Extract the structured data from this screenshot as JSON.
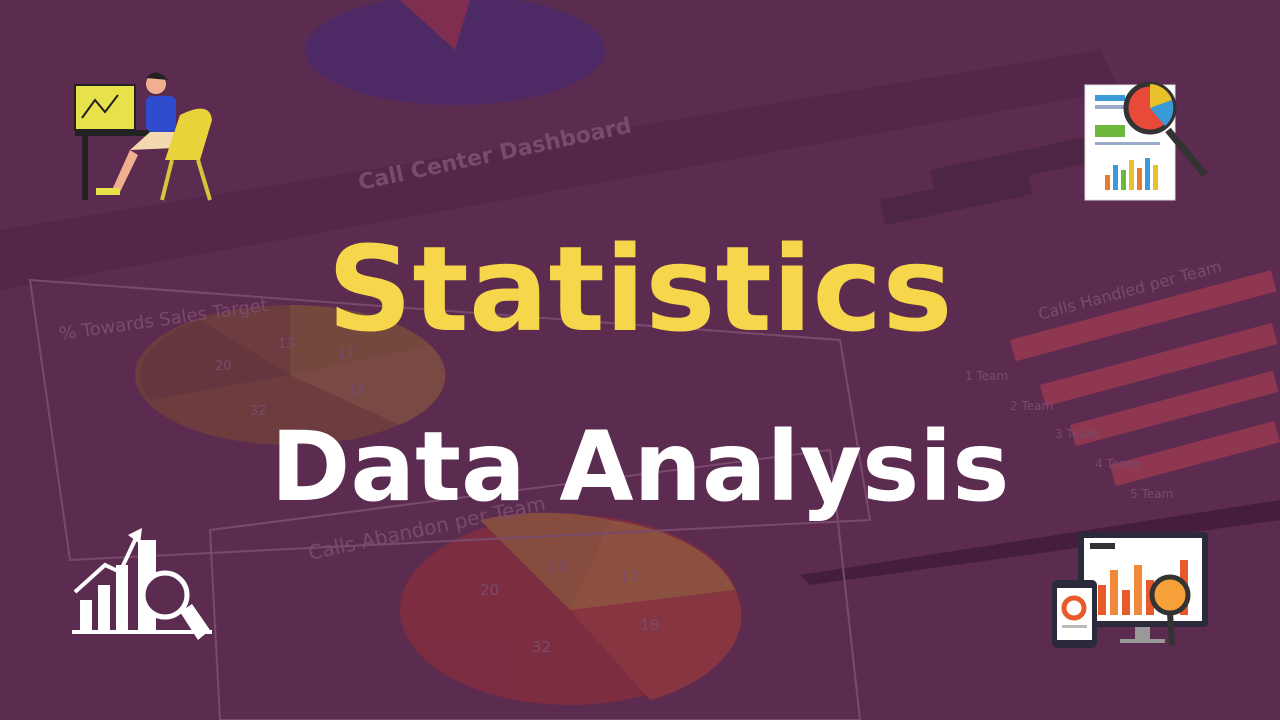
{
  "title": "Statistics",
  "subtitle": "Data Analysis",
  "background": {
    "dashboard_title": "Call Center Dashboard",
    "panel_titles": [
      "% Towards Sales Target",
      "Calls Abandon per Team",
      "Calls Handled per Team"
    ],
    "upper_pie_labels": [
      "20",
      "13",
      "17",
      "32",
      "18"
    ],
    "lower_pie_labels": [
      "20",
      "13",
      "17",
      "32",
      "18"
    ],
    "team_labels": [
      "1 Team",
      "2 Team",
      "3 Team",
      "4 Team",
      "5 Team"
    ]
  }
}
